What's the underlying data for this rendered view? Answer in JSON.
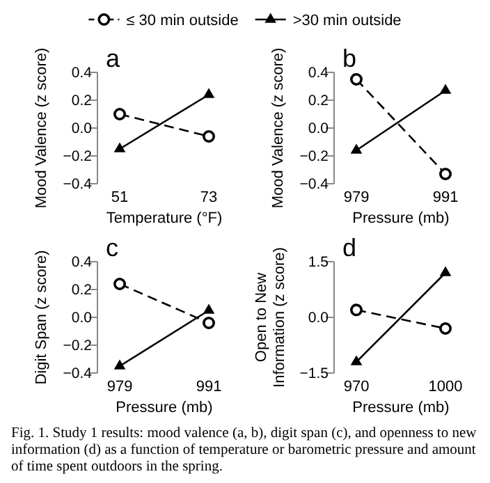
{
  "chart_data": [
    {
      "type": "line",
      "title": "a",
      "xlabel": "Temperature (°F)",
      "ylabel": "Mood Valence (z score)",
      "categories": [
        "51",
        "73"
      ],
      "ylim": [
        -0.4,
        0.4
      ],
      "yticks": [
        {
          "value": 0.4,
          "label": "0.4"
        },
        {
          "value": 0.2,
          "label": "0.2"
        },
        {
          "value": 0,
          "label": "0.0"
        },
        {
          "value": -0.2,
          "label": "−0.2"
        },
        {
          "value": -0.4,
          "label": "−0.4"
        }
      ],
      "legend": "top",
      "series": [
        {
          "name": "≤ 30 min outside",
          "color": "#000000",
          "marker": "circle",
          "line_style": "dashed",
          "values": [
            0.1,
            -0.06
          ]
        },
        {
          "name": ">30 min outside",
          "color": "#000000",
          "marker": "triangle",
          "line_style": "solid",
          "values": [
            -0.15,
            0.24
          ]
        }
      ]
    },
    {
      "type": "line",
      "title": "b",
      "xlabel": "Pressure (mb)",
      "ylabel": "Mood Valence (z score)",
      "categories": [
        "979",
        "991"
      ],
      "ylim": [
        -0.4,
        0.4
      ],
      "yticks": [
        {
          "value": 0.4,
          "label": "0.4"
        },
        {
          "value": 0.2,
          "label": "0.2"
        },
        {
          "value": 0,
          "label": "0.0"
        },
        {
          "value": -0.2,
          "label": "−0.2"
        },
        {
          "value": -0.4,
          "label": "−0.4"
        }
      ],
      "series": [
        {
          "color": "#000000",
          "marker": "circle",
          "line_style": "dashed",
          "values": [
            0.35,
            -0.33
          ]
        },
        {
          "color": "#000000",
          "marker": "triangle",
          "line_style": "solid",
          "values": [
            -0.16,
            0.27
          ]
        }
      ]
    },
    {
      "type": "line",
      "title": "c",
      "xlabel": "Pressure (mb)",
      "ylabel": "Digit Span (z score)",
      "categories": [
        "979",
        "991"
      ],
      "ylim": [
        -0.4,
        0.4
      ],
      "yticks": [
        {
          "value": 0.4,
          "label": "0.4"
        },
        {
          "value": 0.2,
          "label": "0.2"
        },
        {
          "value": 0,
          "label": "0.0"
        },
        {
          "value": -0.2,
          "label": "−0.2"
        },
        {
          "value": -0.4,
          "label": "−0.4"
        }
      ],
      "series": [
        {
          "color": "#000000",
          "marker": "circle",
          "line_style": "dashed",
          "values": [
            0.24,
            -0.04
          ]
        },
        {
          "color": "#000000",
          "marker": "triangle",
          "line_style": "solid",
          "values": [
            -0.35,
            0.05
          ]
        }
      ]
    },
    {
      "type": "line",
      "title": "d",
      "xlabel": "Pressure (mb)",
      "ylabel": "Open to New\nInformation (z score)",
      "categories": [
        "970",
        "1000"
      ],
      "ylim": [
        -1.5,
        1.5
      ],
      "yticks": [
        {
          "value": 1.5,
          "label": "1.5"
        },
        {
          "value": 0,
          "label": "0.0"
        },
        {
          "value": -1.5,
          "label": "−1.5"
        }
      ],
      "annotations": [
        "Fig. 1. Study 1 results: mood valence (a, b), digit span (c), and openness to new information (d) as a function of temperature or barometric pressure and amount of time spent outdoors in the spring."
      ],
      "series": [
        {
          "color": "#000000",
          "marker": "circle",
          "line_style": "dashed",
          "values": [
            0.2,
            -0.3
          ]
        },
        {
          "color": "#000000",
          "marker": "triangle",
          "line_style": "solid",
          "values": [
            -1.2,
            1.2
          ]
        }
      ]
    }
  ]
}
